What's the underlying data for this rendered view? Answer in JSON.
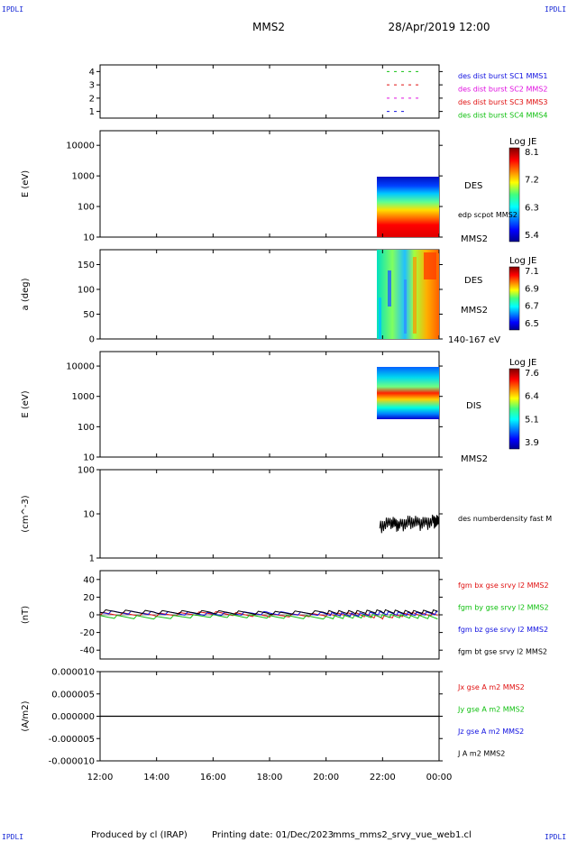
{
  "header": {
    "corner_label": "IPDLI",
    "spacecraft": "MMS2",
    "datetime": "28/Apr/2019 12:00"
  },
  "footer": {
    "produced_by": "Produced by cl (IRAP)",
    "printing_date": "Printing date: 01/Dec/2023",
    "filename": "mms_mms2_srvy_vue_web1.cl"
  },
  "colors": {
    "blue": "#1010e0",
    "magenta": "#e010e0",
    "red": "#e01010",
    "green": "#10c010",
    "black": "#000000"
  },
  "time_axis": {
    "ticks": [
      "12:00",
      "14:00",
      "16:00",
      "18:00",
      "20:00",
      "22:00",
      "00:00"
    ],
    "range_hours": [
      12,
      24
    ]
  },
  "chart_data": [
    {
      "type": "scatter",
      "id": "availability",
      "yticks": [
        "1",
        "2",
        "3",
        "4"
      ],
      "ylim": [
        0.5,
        4.5
      ],
      "legend": [
        {
          "text": "des dist burst SC1 MMS1",
          "color": "blue"
        },
        {
          "text": "des dist burst SC2 MMS2",
          "color": "magenta"
        },
        {
          "text": "des dist burst SC3 MMS3",
          "color": "red"
        },
        {
          "text": "des dist burst SC4 MMS4",
          "color": "green"
        }
      ],
      "series": [
        {
          "row": 4,
          "color": "green",
          "x_hours": [
            22.15,
            23.4
          ]
        },
        {
          "row": 3,
          "color": "red",
          "x_hours": [
            22.15,
            23.4
          ]
        },
        {
          "row": 2,
          "color": "magenta",
          "x_hours": [
            22.15,
            23.4
          ]
        },
        {
          "row": 1,
          "color": "blue",
          "x_hours": [
            22.15,
            22.85
          ]
        }
      ]
    },
    {
      "type": "heatmap",
      "id": "des-energy",
      "ylabel": "E (eV)",
      "yscale": "log",
      "yticks": [
        "10",
        "100",
        "1000",
        "10000"
      ],
      "ylim": [
        10,
        30000
      ],
      "data_x_hours": [
        21.85,
        24
      ],
      "data_ylim": [
        10,
        1000
      ],
      "side_labels": [
        "DES",
        "edp scpot MMS2",
        "MMS2"
      ],
      "colorbar": {
        "title": "Log JE",
        "ticks": [
          "8.1",
          "7.2",
          "6.3",
          "5.4"
        ],
        "range": [
          5.4,
          8.1
        ]
      }
    },
    {
      "type": "heatmap",
      "id": "des-pitch",
      "ylabel": "a (deg)",
      "yticks": [
        "0",
        "50",
        "100",
        "150"
      ],
      "ylim": [
        0,
        180
      ],
      "data_x_hours": [
        21.85,
        24
      ],
      "side_labels": [
        "DES",
        "MMS2",
        "140-167 eV"
      ],
      "colorbar": {
        "title": "Log JE",
        "ticks": [
          "7.1",
          "6.9",
          "6.7",
          "6.5"
        ],
        "range": [
          6.5,
          7.1
        ]
      }
    },
    {
      "type": "heatmap",
      "id": "dis-energy",
      "ylabel": "E (eV)",
      "yscale": "log",
      "yticks": [
        "10",
        "100",
        "1000",
        "10000"
      ],
      "ylim": [
        10,
        30000
      ],
      "data_x_hours": [
        21.85,
        24
      ],
      "data_ylim": [
        200,
        10000
      ],
      "side_labels": [
        "DIS",
        "MMS2"
      ],
      "colorbar": {
        "title": "Log JE",
        "ticks": [
          "7.6",
          "6.4",
          "5.1",
          "3.9"
        ],
        "range": [
          3.9,
          7.6
        ]
      }
    },
    {
      "type": "line",
      "id": "density",
      "ylabel": "(cm^-3)",
      "yscale": "log",
      "yticks": [
        "1",
        "10",
        "100"
      ],
      "ylim": [
        1,
        100
      ],
      "side_labels": [
        "des numberdensity fast M"
      ],
      "series": [
        {
          "color": "black",
          "x_hours": [
            21.9,
            22.3,
            22.6,
            23.0,
            23.4,
            23.8,
            24.0
          ],
          "y": [
            5.5,
            6.5,
            5.8,
            7.0,
            6.2,
            7.2,
            6.8
          ]
        }
      ]
    },
    {
      "type": "line",
      "id": "magnetic-field",
      "ylabel": "(nT)",
      "yticks": [
        "-40",
        "-20",
        "0",
        "20",
        "40"
      ],
      "ylim": [
        -50,
        50
      ],
      "legend": [
        {
          "text": "fgm bx gse srvy l2 MMS2",
          "color": "red"
        },
        {
          "text": "fgm by gse srvy l2 MMS2",
          "color": "green"
        },
        {
          "text": "fgm bz gse srvy l2 MMS2",
          "color": "blue"
        },
        {
          "text": "fgm bt gse srvy l2 MMS2",
          "color": "black"
        }
      ],
      "series": [
        {
          "name": "fgm bx gse srvy l2 MMS2",
          "color": "red",
          "x_hours": [
            12,
            14,
            16,
            18,
            20,
            21,
            22,
            23,
            24
          ],
          "y": [
            1,
            0,
            2,
            -1,
            0,
            1,
            -3,
            1,
            0
          ]
        },
        {
          "name": "fgm by gse srvy l2 MMS2",
          "color": "green",
          "x_hours": [
            12,
            14,
            16,
            18,
            20,
            21,
            22,
            23,
            24
          ],
          "y": [
            -2,
            -3,
            -1,
            -2,
            -3,
            -2,
            -1,
            -2,
            -3
          ]
        },
        {
          "name": "fgm bz gse srvy l2 MMS2",
          "color": "blue",
          "x_hours": [
            12,
            14,
            16,
            18,
            20,
            21,
            22,
            23,
            24
          ],
          "y": [
            3,
            2,
            1,
            2,
            1,
            0,
            2,
            1,
            2
          ]
        },
        {
          "name": "fgm bt gse srvy l2 MMS2",
          "color": "black",
          "x_hours": [
            12,
            14,
            16,
            18,
            20,
            21,
            22,
            23,
            24
          ],
          "y": [
            4,
            3,
            3,
            2,
            3,
            3,
            4,
            3,
            4
          ]
        }
      ]
    },
    {
      "type": "line",
      "id": "current-density",
      "ylabel": "(A/m2)",
      "yticks": [
        "-0.000010",
        "-0.000005",
        "0.000000",
        "0.000005",
        "0.000010"
      ],
      "ylim": [
        -1e-05,
        1e-05
      ],
      "legend": [
        {
          "text": "Jx gse A m2 MMS2",
          "color": "red"
        },
        {
          "text": "Jy gse A m2 MMS2",
          "color": "green"
        },
        {
          "text": "Jz gse A m2 MMS2",
          "color": "blue"
        },
        {
          "text": "J A m2 MMS2",
          "color": "black"
        }
      ],
      "series": [
        {
          "name": "J A m2 MMS2",
          "color": "black",
          "x_hours": [
            12,
            24
          ],
          "y": [
            0,
            0
          ]
        }
      ]
    }
  ]
}
